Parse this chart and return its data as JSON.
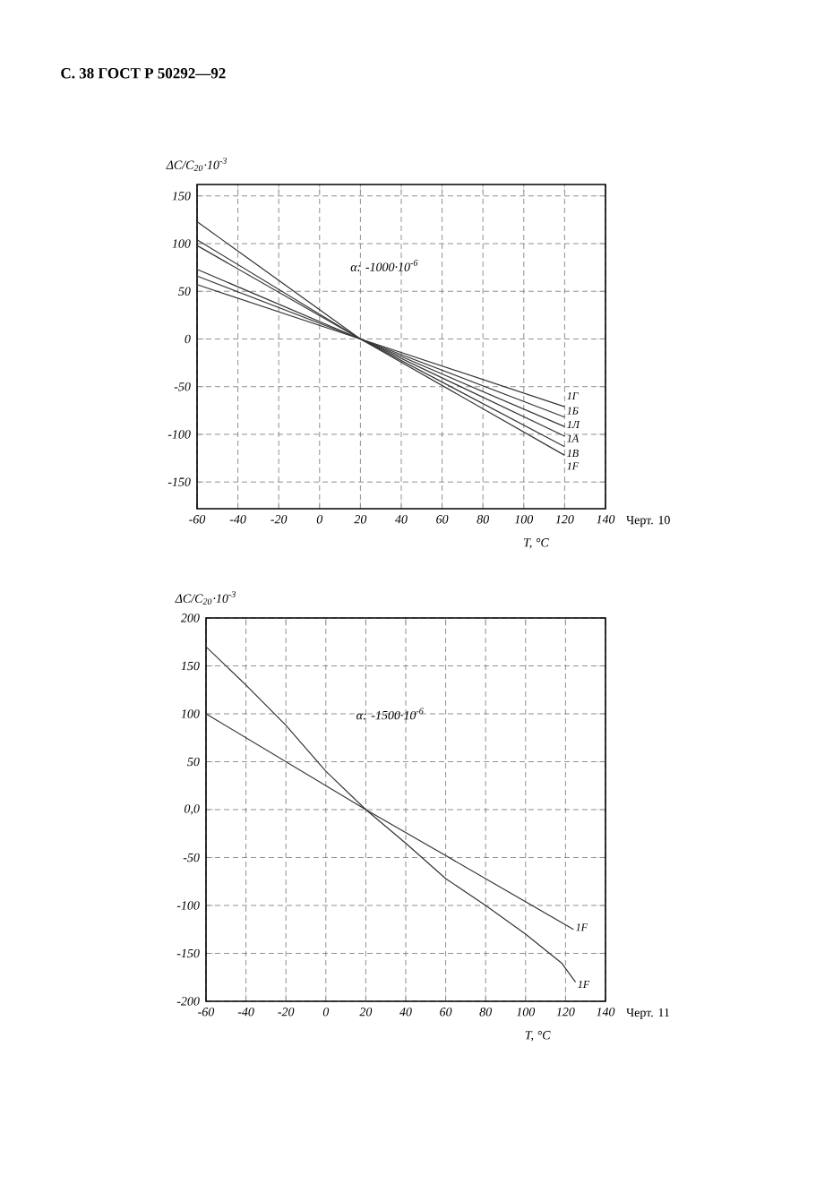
{
  "chart_data": [
    {
      "type": "line",
      "title": "С. 38 ГОСТ Р 50292—92",
      "xlabel": "T, °C",
      "ylabel": "ΔC/C$_{20}$·10$^{-3}$",
      "x": [
        -60,
        20,
        120
      ],
      "xlim": [
        -60,
        140
      ],
      "xticks": [
        -60,
        -40,
        -20,
        0,
        20,
        40,
        60,
        80,
        100,
        120,
        140
      ],
      "ylim": [
        -178,
        162
      ],
      "yticks": [
        -150,
        -100,
        -50,
        0,
        50,
        100,
        150
      ],
      "grid": true,
      "annotations": [
        "α: -1000·10$^{-6}$",
        "Черт. 10"
      ],
      "series": [
        {
          "name": "1Г",
          "color": "#333333",
          "values": [
            57,
            0,
            -71
          ]
        },
        {
          "name": "1Б",
          "color": "#333333",
          "values": [
            66,
            0,
            -82
          ]
        },
        {
          "name": "1Л",
          "color": "#333333",
          "values": [
            73,
            0,
            -92
          ]
        },
        {
          "name": "1А",
          "color": "#333333",
          "values": [
            98,
            0,
            -102
          ]
        },
        {
          "name": "1В",
          "color": "#333333",
          "values": [
            104,
            0,
            -113
          ]
        },
        {
          "name": "1F",
          "color": "#333333",
          "values": [
            123,
            0,
            -122
          ]
        }
      ]
    },
    {
      "type": "line",
      "xlabel": "T, °C",
      "ylabel": "ΔC/C$_{20}$·10$^{-3}$",
      "xlim": [
        -60,
        140
      ],
      "xticks": [
        -60,
        -40,
        -20,
        0,
        20,
        40,
        60,
        80,
        100,
        120,
        140
      ],
      "ylim": [
        -200,
        200
      ],
      "yticks": [
        -200,
        -150,
        -100,
        -50,
        {
          "value": 0,
          "label": "0,0"
        },
        50,
        100,
        150,
        200
      ],
      "grid": true,
      "annotations": [
        "α: -1500·10$^{-6}$",
        "Черт. 11"
      ],
      "series": [
        {
          "name": "1F",
          "color": "#333333",
          "x": [
            -60,
            20,
            60,
            124
          ],
          "values": [
            100,
            0,
            -48,
            -125
          ]
        },
        {
          "name": "1F",
          "color": "#333333",
          "x": [
            -60,
            -40,
            -20,
            0,
            20,
            40,
            60,
            80,
            100,
            118,
            125
          ],
          "values": [
            170,
            130,
            88,
            40,
            0,
            -35,
            -72,
            -100,
            -130,
            -160,
            -180
          ]
        }
      ]
    }
  ]
}
